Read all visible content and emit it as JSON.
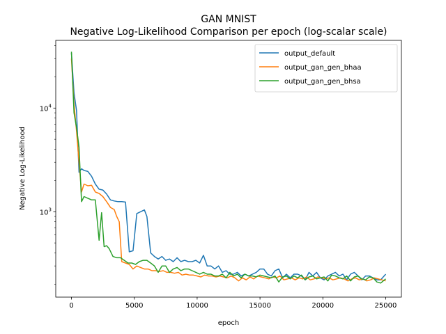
{
  "chart_data": {
    "type": "line",
    "title": "GAN MNIST",
    "subtitle": "Negative Log-Likelihood Comparison per epoch (log-scalar scale)",
    "xlabel": "epoch",
    "ylabel": "Negative Log-Likelihood",
    "xlim": [
      -1250,
      26250
    ],
    "ylim": [
      150,
      45000
    ],
    "yscale": "log",
    "grid": false,
    "legend_position": "top-right",
    "x_ticks": [
      {
        "value": 0,
        "label": "0"
      },
      {
        "value": 5000,
        "label": "5000"
      },
      {
        "value": 10000,
        "label": "10000"
      },
      {
        "value": 15000,
        "label": "15000"
      },
      {
        "value": 20000,
        "label": "20000"
      },
      {
        "value": 25000,
        "label": "25000"
      }
    ],
    "y_major_ticks": [
      {
        "value": 1000,
        "base": "10",
        "exp": "3"
      },
      {
        "value": 10000,
        "base": "10",
        "exp": "4"
      }
    ],
    "y_minor_ticks": [
      200,
      300,
      400,
      500,
      600,
      700,
      800,
      900,
      2000,
      3000,
      4000,
      5000,
      6000,
      7000,
      8000,
      9000,
      20000,
      30000,
      40000
    ],
    "series": [
      {
        "name": "output_default",
        "color": "#1f77b4",
        "x": [
          0,
          200,
          400,
          600,
          800,
          1000,
          1300,
          1600,
          1900,
          2200,
          2500,
          2800,
          3100,
          3400,
          3700,
          4000,
          4300,
          4600,
          4900,
          5200,
          5500,
          5800,
          6000,
          6300,
          6600,
          6900,
          7200,
          7500,
          7800,
          8100,
          8400,
          8700,
          9000,
          9300,
          9600,
          9900,
          10200,
          10500,
          10800,
          11100,
          11400,
          11700,
          12000,
          12300,
          12600,
          12900,
          13200,
          13500,
          13800,
          14100,
          14400,
          14700,
          15000,
          15300,
          15600,
          15900,
          16200,
          16500,
          16800,
          17100,
          17400,
          17700,
          18000,
          18300,
          18600,
          18900,
          19200,
          19500,
          19800,
          20100,
          20400,
          20700,
          21000,
          21300,
          21600,
          21900,
          22200,
          22500,
          22800,
          23100,
          23400,
          23700,
          24000,
          24300,
          24600,
          25000
        ],
        "values": [
          34000,
          14000,
          9500,
          2400,
          2600,
          2500,
          2450,
          2200,
          1850,
          1650,
          1620,
          1480,
          1300,
          1270,
          1250,
          1250,
          1240,
          410,
          420,
          960,
          1000,
          1040,
          900,
          400,
          370,
          350,
          370,
          340,
          350,
          330,
          360,
          330,
          340,
          330,
          330,
          340,
          320,
          380,
          300,
          300,
          280,
          300,
          260,
          270,
          250,
          250,
          260,
          240,
          250,
          240,
          250,
          260,
          280,
          280,
          250,
          240,
          270,
          280,
          230,
          250,
          230,
          250,
          250,
          240,
          220,
          260,
          240,
          260,
          230,
          220,
          240,
          250,
          260,
          240,
          250,
          220,
          250,
          260,
          240,
          220,
          240,
          240,
          230,
          220,
          220,
          250
        ]
      },
      {
        "name": "output_gan_gen_bhaa",
        "color": "#ff7f0e",
        "x": [
          0,
          200,
          400,
          600,
          800,
          1000,
          1300,
          1600,
          1900,
          2200,
          2500,
          2800,
          3100,
          3400,
          3600,
          3800,
          4000,
          4300,
          4600,
          4900,
          5200,
          5500,
          5800,
          6100,
          6400,
          6700,
          7000,
          7300,
          7600,
          7900,
          8200,
          8500,
          8800,
          9100,
          9400,
          9700,
          10000,
          10300,
          10600,
          10900,
          11200,
          11500,
          11800,
          12100,
          12400,
          12700,
          13000,
          13300,
          13600,
          13900,
          14200,
          14500,
          14800,
          15100,
          15400,
          15700,
          16000,
          16300,
          16600,
          16900,
          17200,
          17500,
          17800,
          18100,
          18400,
          18700,
          19000,
          19300,
          19600,
          19900,
          20200,
          20500,
          20800,
          21100,
          21400,
          21700,
          22000,
          22300,
          22600,
          22900,
          23200,
          23500,
          23800,
          24100,
          24400,
          24700,
          25000
        ],
        "values": [
          30000,
          11000,
          6000,
          3000,
          1550,
          1850,
          1780,
          1800,
          1550,
          1500,
          1400,
          1250,
          1100,
          1050,
          900,
          800,
          330,
          320,
          310,
          280,
          300,
          290,
          280,
          280,
          270,
          270,
          265,
          270,
          260,
          260,
          255,
          260,
          245,
          250,
          245,
          245,
          240,
          235,
          245,
          240,
          240,
          235,
          240,
          235,
          230,
          240,
          230,
          215,
          230,
          220,
          235,
          225,
          240,
          235,
          230,
          225,
          235,
          230,
          240,
          220,
          225,
          230,
          220,
          230,
          225,
          235,
          220,
          225,
          235,
          230,
          225,
          230,
          220,
          225,
          230,
          225,
          215,
          225,
          230,
          220,
          225,
          215,
          220,
          230,
          225,
          220,
          215
        ]
      },
      {
        "name": "output_gan_gen_bhsa",
        "color": "#2ca02c",
        "x": [
          0,
          200,
          400,
          600,
          800,
          1000,
          1300,
          1600,
          1900,
          2200,
          2400,
          2600,
          2800,
          3000,
          3300,
          3600,
          3900,
          4200,
          4500,
          4800,
          5100,
          5400,
          5700,
          6000,
          6300,
          6600,
          6900,
          7200,
          7500,
          7800,
          8100,
          8400,
          8700,
          9000,
          9300,
          9600,
          9900,
          10200,
          10500,
          10800,
          11100,
          11400,
          11700,
          12000,
          12300,
          12600,
          12900,
          13200,
          13500,
          13800,
          14100,
          14400,
          14700,
          15000,
          15300,
          15600,
          15900,
          16200,
          16500,
          16800,
          17100,
          17400,
          17700,
          18000,
          18300,
          18600,
          18900,
          19200,
          19500,
          19800,
          20100,
          20400,
          20700,
          21000,
          21300,
          21600,
          21900,
          22200,
          22500,
          22800,
          23100,
          23400,
          23700,
          24000,
          24300,
          24600,
          25000
        ],
        "values": [
          35000,
          9000,
          6500,
          4200,
          1250,
          1400,
          1350,
          1300,
          1300,
          530,
          980,
          460,
          470,
          440,
          370,
          360,
          360,
          340,
          320,
          320,
          310,
          330,
          340,
          340,
          320,
          300,
          260,
          300,
          300,
          260,
          280,
          290,
          270,
          280,
          280,
          270,
          260,
          250,
          260,
          250,
          250,
          240,
          240,
          250,
          230,
          260,
          240,
          250,
          230,
          250,
          240,
          240,
          235,
          245,
          240,
          235,
          230,
          240,
          210,
          235,
          240,
          225,
          240,
          230,
          245,
          220,
          235,
          240,
          225,
          230,
          235,
          215,
          245,
          240,
          230,
          225,
          240,
          215,
          235,
          240,
          225,
          220,
          235,
          230,
          210,
          205,
          225
        ]
      }
    ]
  }
}
